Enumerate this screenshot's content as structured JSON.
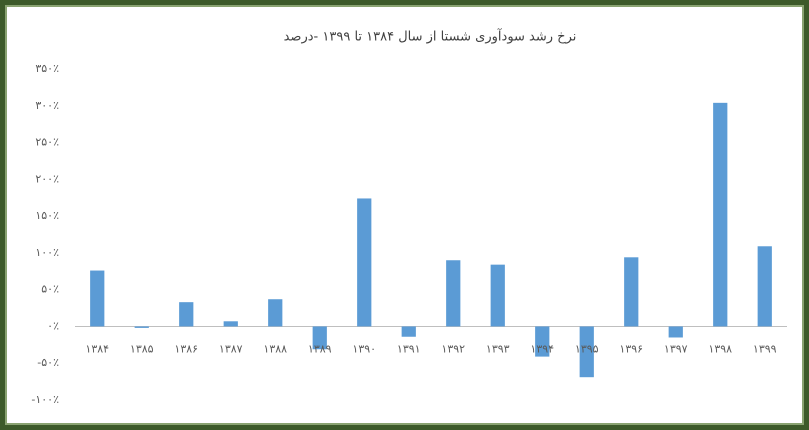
{
  "chart_data": {
    "type": "bar",
    "title": "نرخ رشد سودآوری شستا از سال ۱۳۸۴ تا ۱۳۹۹ -درصد",
    "categories": [
      "۱۳۸۴",
      "۱۳۸۵",
      "۱۳۸۶",
      "۱۳۸۷",
      "۱۳۸۸",
      "۱۳۸۹",
      "۱۳۹۰",
      "۱۳۹۱",
      "۱۳۹۲",
      "۱۳۹۳",
      "۱۳۹۴",
      "۱۳۹۵",
      "۱۳۹۶",
      "۱۳۹۷",
      "۱۳۹۸",
      "۱۳۹۹"
    ],
    "values": [
      76,
      -2,
      33,
      7,
      37,
      -31,
      174,
      -14,
      90,
      84,
      -41,
      -69,
      94,
      -15,
      304,
      109
    ],
    "color": "#5b9bd5",
    "ylim": [
      -100,
      350
    ],
    "yticks": [
      {
        "value": -100,
        "label": "-۱۰۰٪"
      },
      {
        "value": -50,
        "label": "-۵۰٪"
      },
      {
        "value": 0,
        "label": "۰٪"
      },
      {
        "value": 50,
        "label": "۵۰٪"
      },
      {
        "value": 100,
        "label": "۱۰۰٪"
      },
      {
        "value": 150,
        "label": "۱۵۰٪"
      },
      {
        "value": 200,
        "label": "۲۰۰٪"
      },
      {
        "value": 250,
        "label": "۲۵۰٪"
      },
      {
        "value": 300,
        "label": "۳۰۰٪"
      },
      {
        "value": 350,
        "label": "۳۵۰٪"
      }
    ],
    "grid": false
  }
}
